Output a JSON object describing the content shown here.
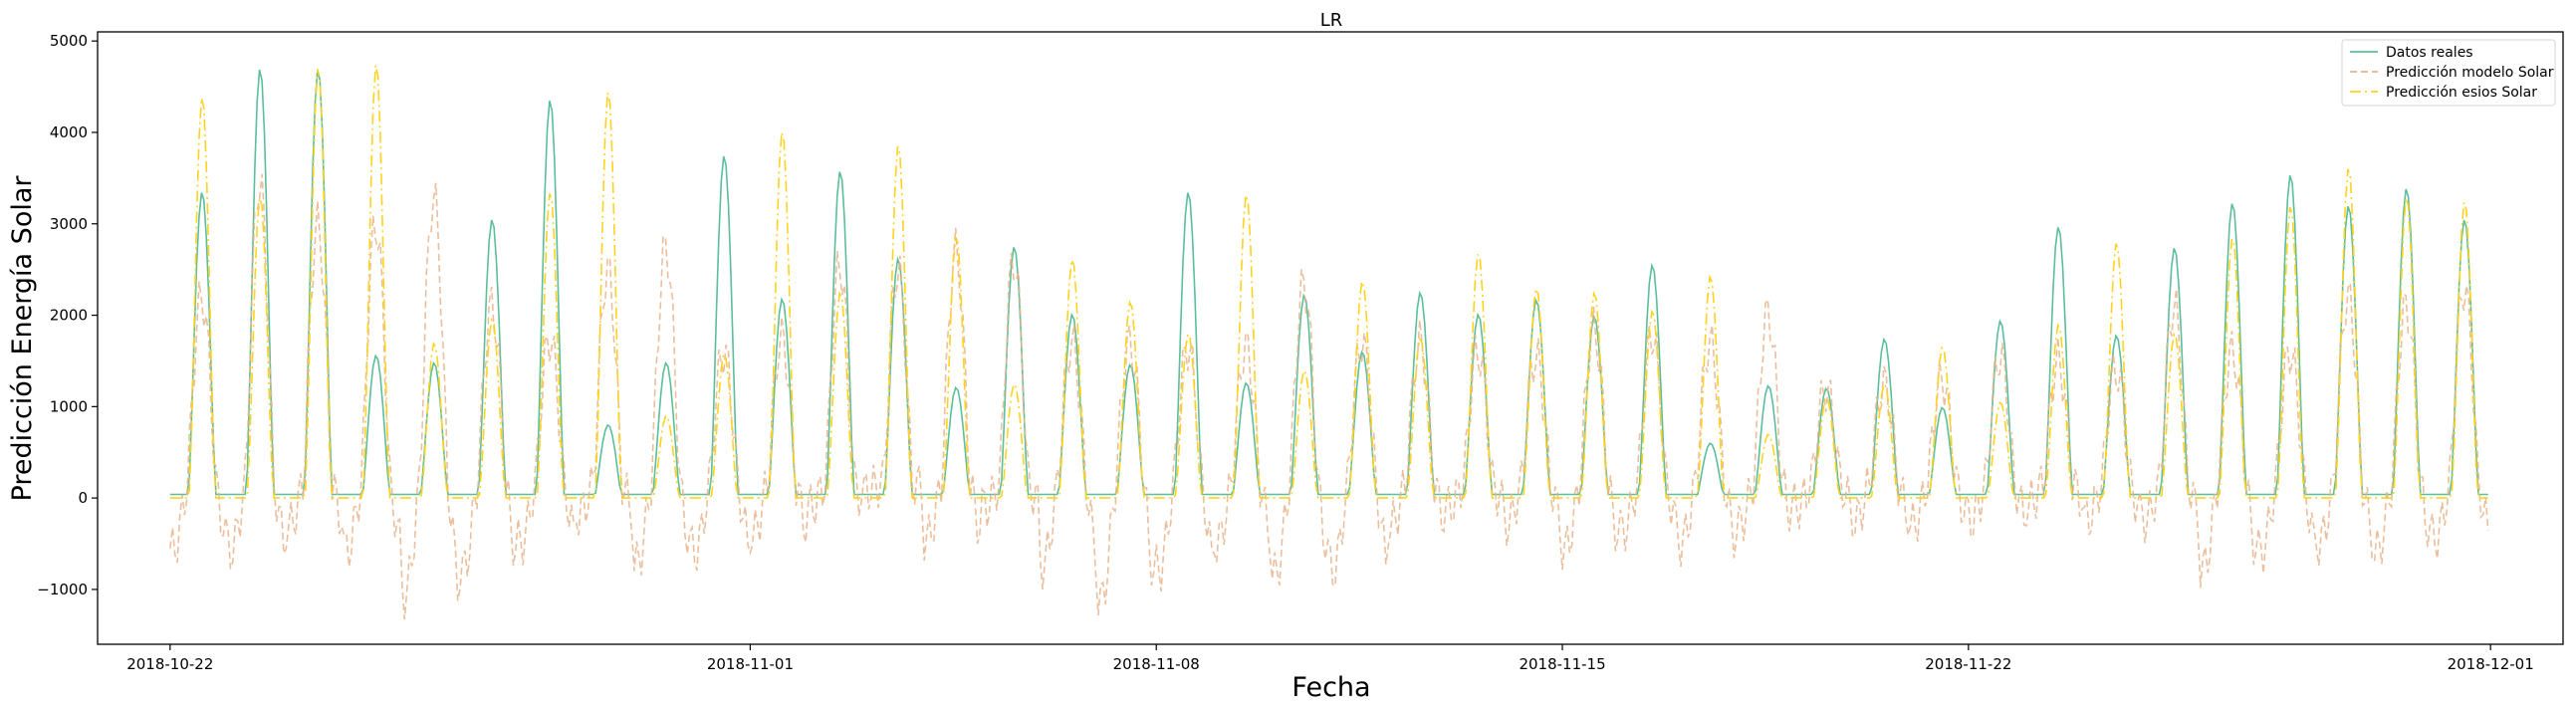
{
  "chart_data": {
    "type": "line",
    "title": "LR",
    "xlabel": "Fecha",
    "ylabel": "Predicción Energía Solar",
    "xlim": [
      "2018-10-20T18:00",
      "2018-12-02T06:00"
    ],
    "ylim": [
      -1600,
      5100
    ],
    "x_ticks": [
      "2018-10-22",
      "2018-11-01",
      "2018-11-08",
      "2018-11-15",
      "2018-11-22",
      "2018-12-01"
    ],
    "y_ticks": [
      -1000,
      0,
      1000,
      2000,
      3000,
      4000,
      5000
    ],
    "grid": false,
    "legend_position": "top-right",
    "x_range": [
      "2018-10-22T00:00",
      "2018-11-30T23:00"
    ],
    "sampling": "hourly",
    "series": [
      {
        "name": "Datos reales",
        "color": "#5bbf9a",
        "style": "solid",
        "daily_peaks": [
          3350,
          4700,
          4700,
          1560,
          1480,
          3050,
          4360,
          800,
          1480,
          3750,
          2180,
          3580,
          2620,
          1210,
          2750,
          2010,
          1460,
          3350,
          1260,
          2220,
          1600,
          2250,
          2010,
          2170,
          1990,
          2550,
          600,
          1230,
          1200,
          1740,
          990,
          1940,
          2970,
          1780,
          2740,
          3230,
          3540,
          3200,
          3390,
          3050
        ]
      },
      {
        "name": "Predicción modelo Solar",
        "color": "#e8b48c",
        "style": "dashed",
        "daily_peaks": [
          2200,
          3450,
          2990,
          3000,
          3300,
          2100,
          1750,
          2500,
          2750,
          1600,
          1750,
          2550,
          2500,
          2700,
          2600,
          1700,
          1700,
          1650,
          1650,
          2350,
          1700,
          1700,
          1600,
          1550,
          1850,
          1800,
          1700,
          2020,
          1200,
          1250,
          1300,
          1550,
          1500,
          1400,
          2100,
          1600,
          1600,
          2200,
          2100,
          2300
        ],
        "daily_troughs": [
          -780,
          -780,
          -520,
          -780,
          -1270,
          -1000,
          -700,
          -380,
          -920,
          -800,
          -600,
          -300,
          -100,
          -650,
          -300,
          -940,
          -1330,
          -1000,
          -700,
          -1050,
          -1000,
          -500,
          -300,
          -480,
          -760,
          -560,
          -700,
          -500,
          -300,
          -450,
          -500,
          -450,
          -260,
          -440,
          -440,
          -980,
          -800,
          -700,
          -780,
          -650
        ]
      },
      {
        "name": "Predicción esios Solar",
        "color": "#ffd21f",
        "style": "dashdot",
        "daily_peaks": [
          4400,
          3300,
          4720,
          4760,
          1700,
          1960,
          3350,
          4460,
          900,
          1580,
          4020,
          2250,
          3870,
          2870,
          1250,
          2620,
          2150,
          1800,
          3330,
          1400,
          2380,
          1750,
          2680,
          2300,
          2250,
          2050,
          2430,
          700,
          1100,
          1250,
          1650,
          1050,
          1900,
          2800,
          1800,
          2850,
          3200,
          3620,
          3300,
          3250
        ]
      }
    ]
  }
}
